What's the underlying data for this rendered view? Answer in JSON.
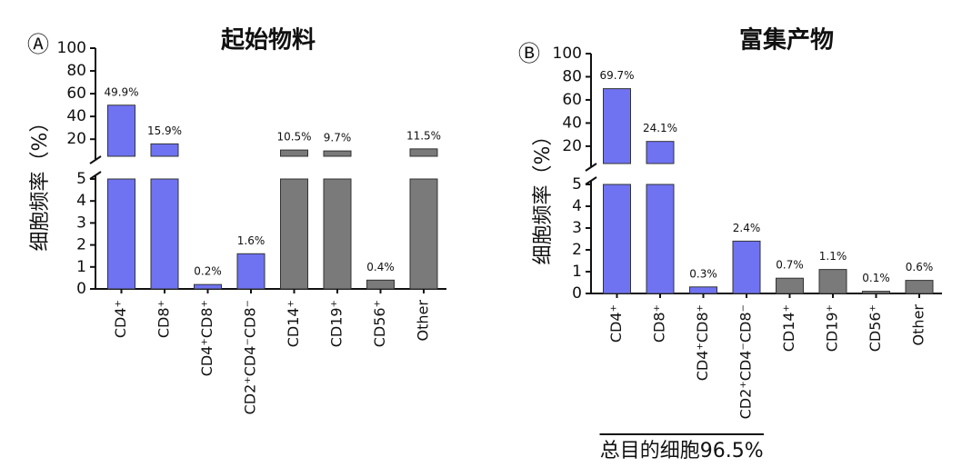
{
  "chart_data": [
    {
      "type": "bar",
      "panel_label": "Ⓐ",
      "title": "起始物料",
      "ylabel": "细胞频率（%）",
      "categories": [
        "CD4⁺",
        "CD8⁺",
        "CD4⁺CD8⁺",
        "CD2⁺CD4⁻CD8⁻",
        "CD14⁺",
        "CD19⁺",
        "CD56⁺",
        "Other"
      ],
      "values": [
        49.9,
        15.9,
        0.2,
        1.6,
        10.5,
        9.7,
        0.4,
        11.5
      ],
      "value_labels": [
        "49.9%",
        "15.9%",
        "0.2%",
        "1.6%",
        "10.5%",
        "9.7%",
        "0.4%",
        "11.5%"
      ],
      "colors": [
        "#6f73f2",
        "#6f73f2",
        "#6f73f2",
        "#6f73f2",
        "#7a7a7a",
        "#7a7a7a",
        "#7a7a7a",
        "#7a7a7a"
      ],
      "ylim": [
        0,
        5
      ],
      "yticks": [
        0,
        1,
        2,
        3,
        4,
        5
      ],
      "ylim_upper": [
        5,
        100
      ],
      "yticks_upper": [
        20,
        40,
        60,
        80,
        100
      ]
    },
    {
      "type": "bar",
      "panel_label": "Ⓑ",
      "title": "富集产物",
      "ylabel": "细胞频率（%）",
      "categories": [
        "CD4⁺",
        "CD8⁺",
        "CD4⁺CD8⁺",
        "CD2⁺CD4⁻CD8⁻",
        "CD14⁺",
        "CD19⁺",
        "CD56⁺",
        "Other"
      ],
      "values": [
        69.7,
        24.1,
        0.3,
        2.4,
        0.7,
        1.1,
        0.1,
        0.6
      ],
      "value_labels": [
        "69.7%",
        "24.1%",
        "0.3%",
        "2.4%",
        "0.7%",
        "1.1%",
        "0.1%",
        "0.6%"
      ],
      "colors": [
        "#6f73f2",
        "#6f73f2",
        "#6f73f2",
        "#6f73f2",
        "#7a7a7a",
        "#7a7a7a",
        "#7a7a7a",
        "#7a7a7a"
      ],
      "ylim": [
        0,
        5
      ],
      "yticks": [
        0,
        1,
        2,
        3,
        4,
        5
      ],
      "ylim_upper": [
        5,
        100
      ],
      "yticks_upper": [
        20,
        40,
        60,
        80,
        100
      ],
      "footnote": "总目的细胞96.5%"
    }
  ]
}
